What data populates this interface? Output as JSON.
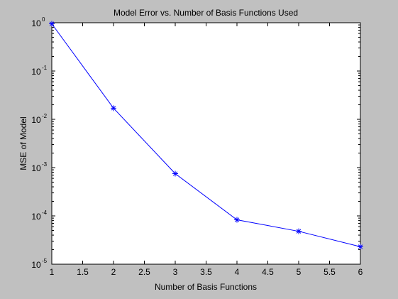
{
  "chart_data": {
    "type": "line",
    "title": "Model Error vs. Number of Basis Functions Used",
    "xlabel": "Number of Basis Functions",
    "ylabel": "MSE of Model",
    "xlim": [
      1,
      6
    ],
    "ylim": [
      1e-05,
      1
    ],
    "yscale": "log",
    "grid": false,
    "x_ticks": [
      "1",
      "1.5",
      "2",
      "2.5",
      "3",
      "3.5",
      "4",
      "4.5",
      "5",
      "5.5",
      "6"
    ],
    "y_ticks": [
      {
        "base": "10",
        "exp": "0"
      },
      {
        "base": "10",
        "exp": "-1"
      },
      {
        "base": "10",
        "exp": "-2"
      },
      {
        "base": "10",
        "exp": "-3"
      },
      {
        "base": "10",
        "exp": "-4"
      },
      {
        "base": "10",
        "exp": "-5"
      }
    ],
    "series": [
      {
        "marker": "asterisk",
        "color": "#0000ff",
        "x": [
          1,
          2,
          3,
          4,
          5,
          6
        ],
        "y": [
          0.95,
          0.017,
          0.00075,
          8.3e-05,
          4.8e-05,
          2.3e-05
        ]
      }
    ]
  }
}
